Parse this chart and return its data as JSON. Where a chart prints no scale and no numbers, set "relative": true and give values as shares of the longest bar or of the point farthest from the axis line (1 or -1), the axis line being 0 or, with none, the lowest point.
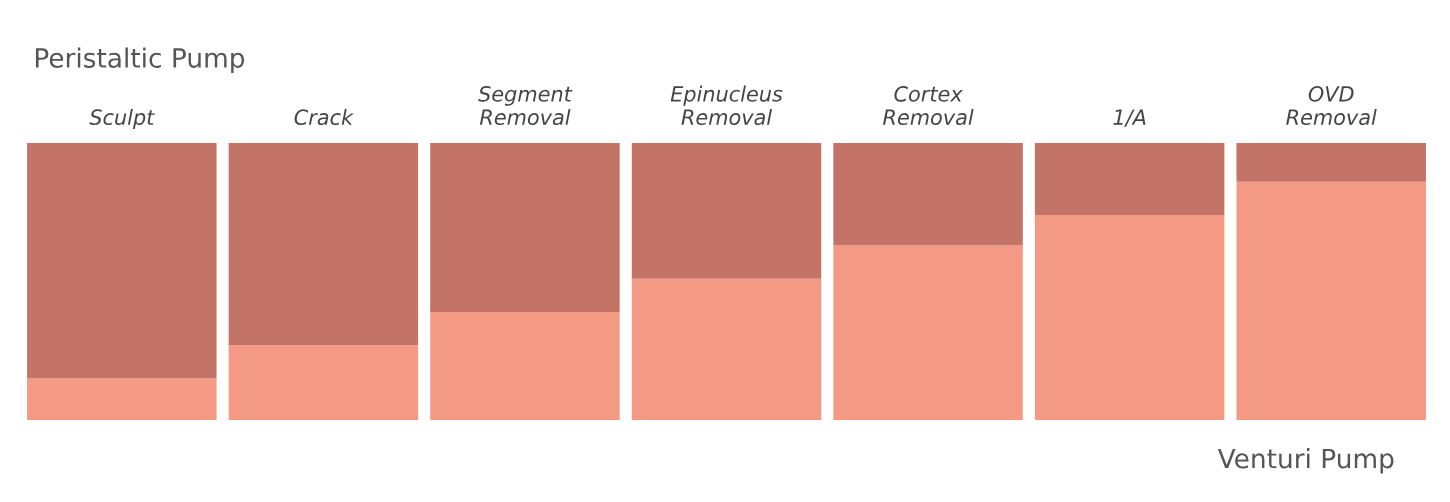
{
  "chart_data": {
    "type": "bar",
    "stacked": true,
    "relative": true,
    "categories": [
      "Sculpt",
      "Crack",
      "Segment\nRemoval",
      "Epinucleus\nRemoval",
      "Cortex\nRemoval",
      "1/A",
      "OVD\nRemoval"
    ],
    "series": [
      {
        "name": "Venturi Pump",
        "color": "#f49a84",
        "values": [
          0.15,
          0.27,
          0.39,
          0.51,
          0.63,
          0.74,
          0.86
        ]
      },
      {
        "name": "Peristaltic Pump",
        "color": "#c47466",
        "values": [
          0.85,
          0.73,
          0.61,
          0.49,
          0.37,
          0.26,
          0.14
        ]
      }
    ]
  }
}
